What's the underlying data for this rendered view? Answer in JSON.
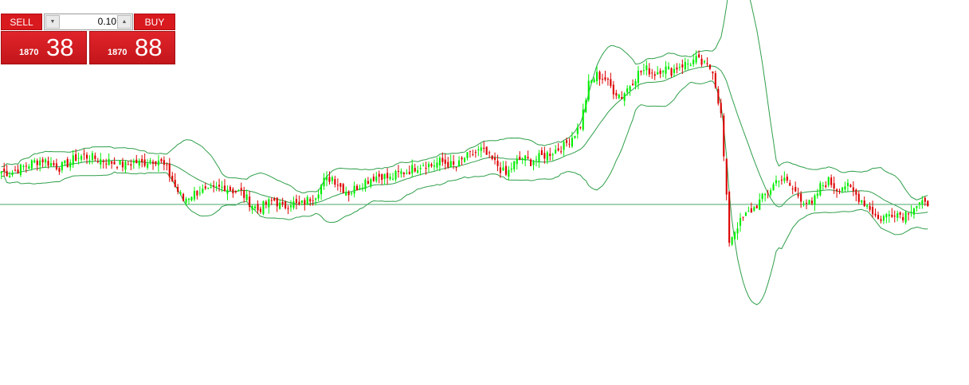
{
  "trade_panel": {
    "sell_label": "SELL",
    "buy_label": "BUY",
    "lot_size": "0.10",
    "sell_price_prefix": "1870",
    "sell_price_big": "38",
    "buy_price_prefix": "1870",
    "buy_price_big": "88",
    "spin_down_icon": "triangle-down-icon",
    "spin_up_icon": "triangle-up-icon",
    "panel_color": "#d8191e"
  },
  "chart_data": {
    "type": "candlestick",
    "title": "",
    "xlabel": "",
    "ylabel": "",
    "grid": false,
    "ylim": [
      1861.0,
      1881.0
    ],
    "price_level_line": 1870.38,
    "colors": {
      "bull": "#00ee00",
      "bear": "#dd0000",
      "bands": "#2f9f4a",
      "level_line": "#4aa56a"
    },
    "indicator": "Bollinger Bands",
    "price_path": [
      1872.1,
      1872.0,
      1872.2,
      1872.4,
      1872.6,
      1872.7,
      1872.5,
      1872.3,
      1872.5,
      1872.8,
      1872.9,
      1872.8,
      1872.7,
      1872.6,
      1872.5,
      1872.4,
      1872.6,
      1872.5,
      1872.7,
      1872.7,
      1872.2,
      1871.3,
      1870.6,
      1870.9,
      1871.1,
      1871.0,
      1871.2,
      1871.3,
      1871.1,
      1871.0,
      1870.5,
      1870.1,
      1870.4,
      1870.6,
      1870.2,
      1870.5,
      1870.3,
      1870.6,
      1870.9,
      1871.6,
      1871.8,
      1871.3,
      1871.0,
      1871.3,
      1871.6,
      1871.8,
      1871.9,
      1871.7,
      1872.0,
      1872.1,
      1872.3,
      1872.5,
      1872.4,
      1872.6,
      1872.5,
      1872.3,
      1872.8,
      1873.0,
      1873.2,
      1872.8,
      1872.4,
      1871.9,
      1872.5,
      1872.8,
      1872.6,
      1872.8,
      1873.0,
      1873.2,
      1873.4,
      1873.9,
      1874.5,
      1876.6,
      1877.1,
      1876.9,
      1876.3,
      1876.0,
      1876.6,
      1877.2,
      1877.4,
      1877.2,
      1877.5,
      1877.3,
      1877.6,
      1877.7,
      1877.9,
      1877.6,
      1877.4,
      1875.0,
      1868.5,
      1869.3,
      1869.8,
      1870.2,
      1870.7,
      1871.2,
      1871.8,
      1871.5,
      1871.0,
      1870.6,
      1870.3,
      1871.3,
      1871.6,
      1871.2,
      1871.4,
      1871.0,
      1870.6,
      1870.2,
      1869.6,
      1869.8,
      1870.0,
      1869.8,
      1870.2,
      1870.4,
      1870.3
    ]
  }
}
